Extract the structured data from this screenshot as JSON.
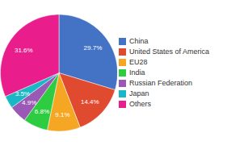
{
  "chart_data": {
    "type": "pie",
    "categories": [
      "China",
      "United States of America",
      "EU28",
      "India",
      "Russian Federation",
      "Japan",
      "Others"
    ],
    "values": [
      29.7,
      14.4,
      9.1,
      6.8,
      4.9,
      3.5,
      31.6
    ],
    "value_labels": [
      "29.7%",
      "14.4%",
      "9.1%",
      "6.8%",
      "4.9%",
      "3.5%",
      "31.6%"
    ],
    "colors": [
      "#4472c4",
      "#e04a2f",
      "#f5a623",
      "#2ecc40",
      "#9b59b6",
      "#1ab8c4",
      "#e91e8c"
    ],
    "data_labels": true,
    "legend": "right"
  }
}
